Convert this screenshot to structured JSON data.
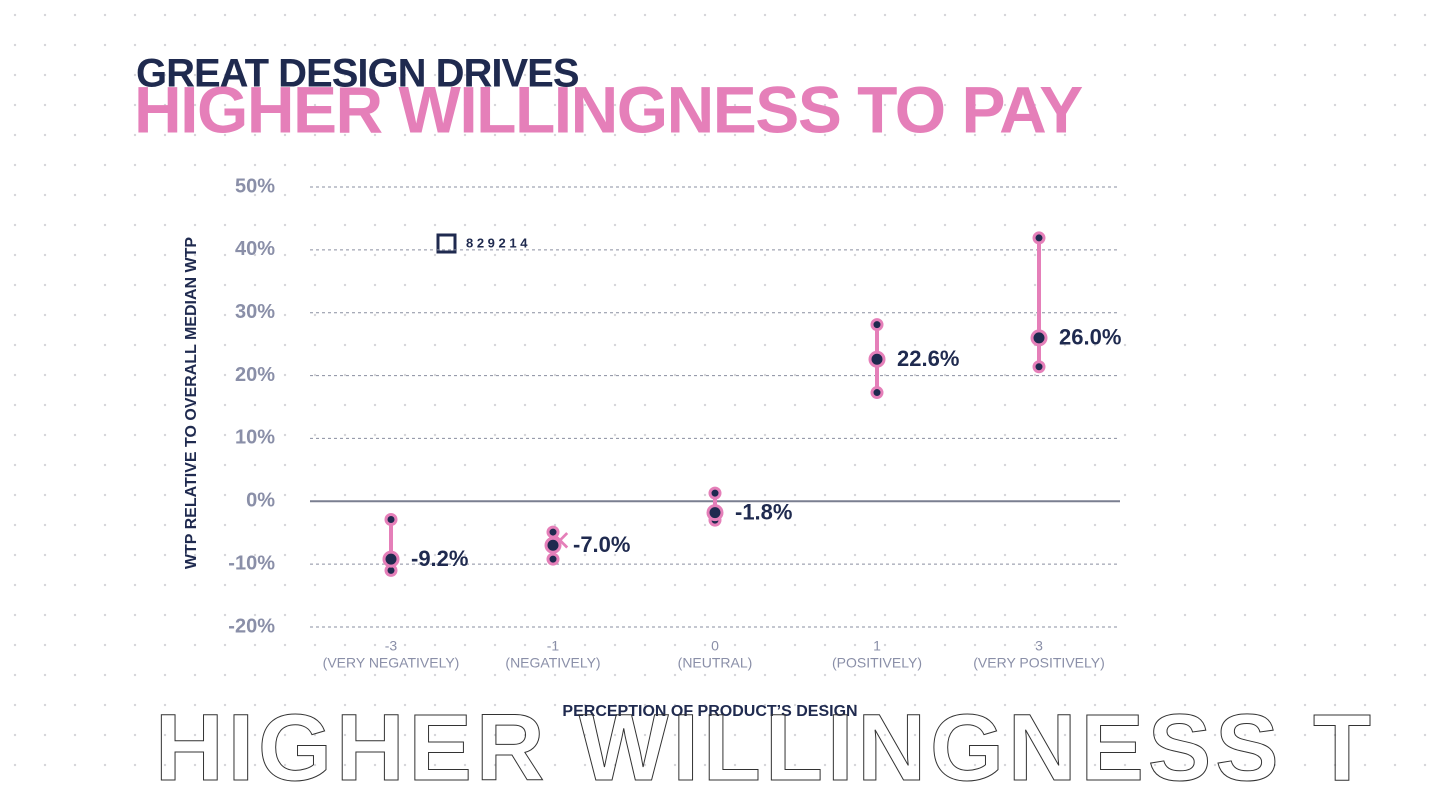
{
  "chart_data": {
    "type": "errorbar",
    "title": "GREAT DESIGN DRIVES",
    "subtitle": "HIGHER WILLINGNESS TO PAY",
    "ylabel": "WTP RELATIVE TO OVERALL MEDIAN WTP",
    "xlabel": "PERCEPTION OF PRODUCT’S DESIGN",
    "code": "8 2 9 2 1 4",
    "background_text": "HIGHER WILLINGNESS T",
    "categories": [
      "-3",
      "-1",
      "0",
      "1",
      "3"
    ],
    "category_descriptions": [
      "(VERY NEGATIVELY)",
      "(NEGATIVELY)",
      "(NEUTRAL)",
      "(POSITIVELY)",
      "(VERY POSITIVELY)"
    ],
    "values": [
      -9.2,
      -7.0,
      -1.8,
      22.6,
      26.0
    ],
    "value_labels": [
      "-9.2%",
      "-7.0%",
      "-1.8%",
      "22.6%",
      "26.0%"
    ],
    "error_low": [
      -11.0,
      -9.2,
      -3.0,
      17.3,
      21.4
    ],
    "error_high": [
      -2.9,
      -4.9,
      1.3,
      28.1,
      41.9
    ],
    "color": "#e57fb9",
    "point_color": "#1f2a4f",
    "ylim": [
      -20,
      50
    ],
    "yticks": [
      {
        "value": -20,
        "label": "-20%"
      },
      {
        "value": -10,
        "label": "-10%"
      },
      {
        "value": 0,
        "label": "0%"
      },
      {
        "value": 10,
        "label": "10%"
      },
      {
        "value": 20,
        "label": "20%"
      },
      {
        "value": 30,
        "label": "30%"
      },
      {
        "value": 40,
        "label": "40%"
      },
      {
        "value": 50,
        "label": "50%"
      }
    ],
    "grid": true
  }
}
